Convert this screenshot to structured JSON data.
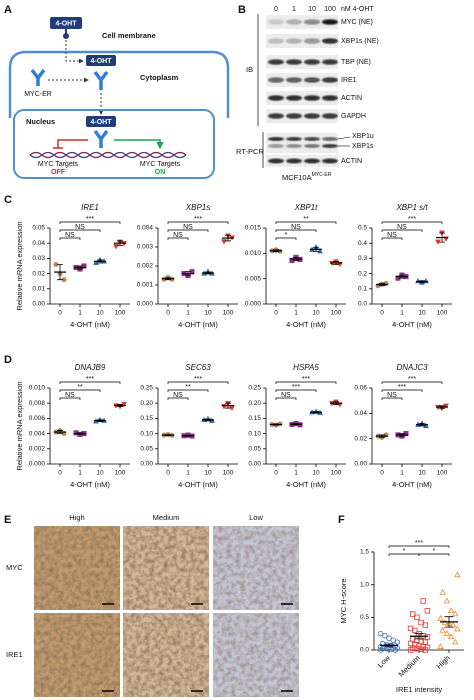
{
  "panel_labels": [
    "A",
    "B",
    "C",
    "D",
    "E",
    "F"
  ],
  "diagram": {
    "ligand": "4-OHT",
    "membrane": "Cell membrane",
    "cytoplasm": "Cytoplasm",
    "receptor": "MYC-ER",
    "nucleus": "Nucleus",
    "targets_off": "MYC Targets",
    "off": "OFF",
    "targets_on": "MYC Targets",
    "on": "ON"
  },
  "blot": {
    "concentrations": [
      0,
      1,
      10,
      100
    ],
    "unit": "nM 4-OHT",
    "ib_label": "IB",
    "ib_rows": [
      "MYC (NE)",
      "XBP1s (NE)",
      "TBP (NE)",
      "IRE1",
      "ACTIN",
      "GAPDH"
    ],
    "rtpcr_label": "RT-PCR",
    "rtpcr_rows": [
      "XBP1u",
      "XBP1s",
      "ACTIN"
    ],
    "cell_line": "MCF10A",
    "cell_line_sup": "MYC-ER"
  },
  "ihc": {
    "columns": [
      "High",
      "Medium",
      "Low"
    ],
    "rows": [
      "MYC",
      "IRE1"
    ]
  },
  "chart_data": [
    {
      "type": "dotplot",
      "title": "IRE1",
      "ylabel": "Relative mRNA expression",
      "xlabel": "4-OHT (nM)",
      "categories": [
        "0",
        "1",
        "10",
        "100"
      ],
      "ylim": [
        0,
        0.05
      ],
      "yticks": [
        {
          "value": 0,
          "label": "0.00"
        },
        0.01,
        0.02,
        0.03,
        0.04,
        0.05
      ],
      "groups": [
        {
          "color": "#b58a5c",
          "marker": "circle",
          "filled": true,
          "values": [
            0.026,
            0.02,
            0.016
          ],
          "mean": 0.021,
          "sd": 0.005
        },
        {
          "color": "#8e2f8e",
          "marker": "square",
          "filled": true,
          "values": [
            0.024,
            0.023,
            0.025
          ],
          "mean": 0.024,
          "sd": 0.001
        },
        {
          "color": "#2f6db5",
          "marker": "triangle",
          "filled": true,
          "values": [
            0.027,
            0.029,
            0.028
          ],
          "mean": 0.028,
          "sd": 0.001
        },
        {
          "color": "#e0392f",
          "marker": "triangle-down",
          "filled": true,
          "values": [
            0.038,
            0.041,
            0.04
          ],
          "mean": 0.04,
          "sd": 0.0015
        }
      ],
      "significance": [
        {
          "pair": [
            0,
            1
          ],
          "label": "NS"
        },
        {
          "pair": [
            0,
            2
          ],
          "label": "NS"
        },
        {
          "pair": [
            0,
            3
          ],
          "label": "***"
        }
      ]
    },
    {
      "type": "dotplot",
      "title": "XBP1s",
      "xlabel": "4-OHT (nM)",
      "categories": [
        "0",
        "1",
        "10",
        "100"
      ],
      "ylim": [
        0,
        0.004
      ],
      "yticks": [
        {
          "value": 0,
          "label": "0.000"
        },
        0.001,
        0.002,
        0.003,
        0.004
      ],
      "groups": [
        {
          "color": "#b58a5c",
          "marker": "circle",
          "filled": true,
          "values": [
            0.0013,
            0.0014,
            0.0013
          ],
          "mean": 0.00133,
          "sd": 5e-05
        },
        {
          "color": "#8e2f8e",
          "marker": "square",
          "filled": true,
          "values": [
            0.0016,
            0.0015,
            0.0017
          ],
          "mean": 0.0016,
          "sd": 0.0001
        },
        {
          "color": "#2f6db5",
          "marker": "triangle",
          "filled": true,
          "values": [
            0.0016,
            0.0017,
            0.0016
          ],
          "mean": 0.00163,
          "sd": 5e-05
        },
        {
          "color": "#e0392f",
          "marker": "triangle-down",
          "filled": true,
          "values": [
            0.0033,
            0.0036,
            0.0035
          ],
          "mean": 0.00347,
          "sd": 0.00015
        }
      ],
      "significance": [
        {
          "pair": [
            0,
            1
          ],
          "label": "NS"
        },
        {
          "pair": [
            0,
            2
          ],
          "label": "NS"
        },
        {
          "pair": [
            0,
            3
          ],
          "label": "***"
        }
      ]
    },
    {
      "type": "dotplot",
      "title": "XBP1t",
      "xlabel": "4-OHT (nM)",
      "categories": [
        "0",
        "1",
        "10",
        "100"
      ],
      "ylim": [
        0,
        0.015
      ],
      "yticks": [
        {
          "value": 0,
          "label": "0.000"
        },
        0.005,
        {
          "value": 0.01,
          "label": "0.010"
        },
        0.015
      ],
      "groups": [
        {
          "color": "#b58a5c",
          "marker": "circle",
          "filled": true,
          "values": [
            0.0105,
            0.0107,
            0.0104
          ],
          "mean": 0.0105,
          "sd": 0.0002
        },
        {
          "color": "#8e2f8e",
          "marker": "square",
          "filled": true,
          "values": [
            0.0086,
            0.0092,
            0.0088
          ],
          "mean": 0.0089,
          "sd": 0.0003
        },
        {
          "color": "#2f6db5",
          "marker": "triangle",
          "filled": true,
          "values": [
            0.0107,
            0.0112,
            0.0104
          ],
          "mean": 0.0108,
          "sd": 0.0004
        },
        {
          "color": "#e0392f",
          "marker": "triangle-down",
          "filled": true,
          "values": [
            0.0081,
            0.0084,
            0.0079
          ],
          "mean": 0.0081,
          "sd": 0.0003
        }
      ],
      "significance": [
        {
          "pair": [
            0,
            1
          ],
          "label": "*"
        },
        {
          "pair": [
            0,
            2
          ],
          "label": "NS"
        },
        {
          "pair": [
            0,
            3
          ],
          "label": "**"
        }
      ]
    },
    {
      "type": "dotplot",
      "title": "XBP1 s/t",
      "xlabel": "4-OHT (nM)",
      "categories": [
        "0",
        "1",
        "10",
        "100"
      ],
      "ylim": [
        0,
        0.5
      ],
      "yticks": [
        {
          "value": 0,
          "label": "0.0"
        },
        0.1,
        0.2,
        0.3,
        0.4,
        0.5
      ],
      "groups": [
        {
          "color": "#b58a5c",
          "marker": "circle",
          "filled": true,
          "values": [
            0.12,
            0.13,
            0.135
          ],
          "mean": 0.128,
          "sd": 0.008
        },
        {
          "color": "#8e2f8e",
          "marker": "square",
          "filled": true,
          "values": [
            0.17,
            0.19,
            0.18
          ],
          "mean": 0.18,
          "sd": 0.01
        },
        {
          "color": "#2f6db5",
          "marker": "triangle",
          "filled": true,
          "values": [
            0.15,
            0.14,
            0.15
          ],
          "mean": 0.147,
          "sd": 0.006
        },
        {
          "color": "#e0392f",
          "marker": "triangle-down",
          "filled": true,
          "values": [
            0.41,
            0.47,
            0.43
          ],
          "mean": 0.437,
          "sd": 0.03
        }
      ],
      "significance": [
        {
          "pair": [
            0,
            1
          ],
          "label": "NS"
        },
        {
          "pair": [
            0,
            2
          ],
          "label": "NS"
        },
        {
          "pair": [
            0,
            3
          ],
          "label": "***"
        }
      ]
    },
    {
      "type": "dotplot",
      "title": "DNAJB9",
      "ylabel": "Relative mRNA expression",
      "xlabel": "4-OHT (nM)",
      "categories": [
        "0",
        "1",
        "10",
        "100"
      ],
      "ylim": [
        0,
        0.01
      ],
      "yticks": [
        {
          "value": 0,
          "label": "0.000"
        },
        0.002,
        0.004,
        0.006,
        0.008,
        {
          "value": 0.01,
          "label": "0.010"
        }
      ],
      "groups": [
        {
          "color": "#b58a5c",
          "marker": "circle",
          "filled": true,
          "values": [
            0.0042,
            0.0044,
            0.004
          ],
          "mean": 0.0042,
          "sd": 0.0002
        },
        {
          "color": "#8e2f8e",
          "marker": "square",
          "filled": true,
          "values": [
            0.0041,
            0.0039,
            0.004
          ],
          "mean": 0.004,
          "sd": 0.0001
        },
        {
          "color": "#2f6db5",
          "marker": "triangle",
          "filled": true,
          "values": [
            0.0056,
            0.0058,
            0.0057
          ],
          "mean": 0.0057,
          "sd": 0.0001
        },
        {
          "color": "#e0392f",
          "marker": "triangle-down",
          "filled": true,
          "values": [
            0.0077,
            0.0076,
            0.0079
          ],
          "mean": 0.0077,
          "sd": 0.00015
        }
      ],
      "significance": [
        {
          "pair": [
            0,
            1
          ],
          "label": "NS"
        },
        {
          "pair": [
            0,
            2
          ],
          "label": "**"
        },
        {
          "pair": [
            0,
            3
          ],
          "label": "***"
        }
      ]
    },
    {
      "type": "dotplot",
      "title": "SEC63",
      "xlabel": "4-OHT (nM)",
      "categories": [
        "0",
        "1",
        "10",
        "100"
      ],
      "ylim": [
        0,
        0.25
      ],
      "yticks": [
        {
          "value": 0,
          "label": "0.00"
        },
        0.05,
        {
          "value": 0.1,
          "label": "0.10"
        },
        0.15,
        {
          "value": 0.2,
          "label": "0.20"
        },
        0.25
      ],
      "groups": [
        {
          "color": "#b58a5c",
          "marker": "circle",
          "filled": true,
          "values": [
            0.095,
            0.097,
            0.094
          ],
          "mean": 0.095,
          "sd": 0.0015
        },
        {
          "color": "#8e2f8e",
          "marker": "square",
          "filled": true,
          "values": [
            0.093,
            0.095,
            0.092
          ],
          "mean": 0.093,
          "sd": 0.0015
        },
        {
          "color": "#2f6db5",
          "marker": "triangle",
          "filled": true,
          "values": [
            0.145,
            0.148,
            0.142
          ],
          "mean": 0.145,
          "sd": 0.003
        },
        {
          "color": "#e0392f",
          "marker": "triangle-down",
          "filled": true,
          "values": [
            0.19,
            0.2,
            0.185
          ],
          "mean": 0.192,
          "sd": 0.008
        }
      ],
      "significance": [
        {
          "pair": [
            0,
            1
          ],
          "label": "NS"
        },
        {
          "pair": [
            0,
            2
          ],
          "label": "**"
        },
        {
          "pair": [
            0,
            3
          ],
          "label": "***"
        }
      ]
    },
    {
      "type": "dotplot",
      "title": "HSPA5",
      "xlabel": "4-OHT (nM)",
      "categories": [
        "0",
        "1",
        "10",
        "100"
      ],
      "ylim": [
        0,
        0.25
      ],
      "yticks": [
        {
          "value": 0,
          "label": "0.00"
        },
        0.05,
        {
          "value": 0.1,
          "label": "0.10"
        },
        0.15,
        {
          "value": 0.2,
          "label": "0.20"
        },
        0.25
      ],
      "groups": [
        {
          "color": "#b58a5c",
          "marker": "circle",
          "filled": true,
          "values": [
            0.13,
            0.128,
            0.132
          ],
          "mean": 0.13,
          "sd": 0.002
        },
        {
          "color": "#8e2f8e",
          "marker": "square",
          "filled": true,
          "values": [
            0.13,
            0.133,
            0.129
          ],
          "mean": 0.131,
          "sd": 0.002
        },
        {
          "color": "#2f6db5",
          "marker": "triangle",
          "filled": true,
          "values": [
            0.17,
            0.172,
            0.168
          ],
          "mean": 0.17,
          "sd": 0.002
        },
        {
          "color": "#e0392f",
          "marker": "triangle-down",
          "filled": true,
          "values": [
            0.2,
            0.205,
            0.196
          ],
          "mean": 0.2,
          "sd": 0.0045
        }
      ],
      "significance": [
        {
          "pair": [
            0,
            1
          ],
          "label": "NS"
        },
        {
          "pair": [
            0,
            2
          ],
          "label": "***"
        },
        {
          "pair": [
            0,
            3
          ],
          "label": "***"
        }
      ]
    },
    {
      "type": "dotplot",
      "title": "DNAJC3",
      "xlabel": "4-OHT (nM)",
      "categories": [
        "0",
        "1",
        "10",
        "100"
      ],
      "ylim": [
        0,
        0.06
      ],
      "yticks": [
        {
          "value": 0,
          "label": "0.00"
        },
        0.02,
        0.04,
        0.06
      ],
      "groups": [
        {
          "color": "#b58a5c",
          "marker": "circle",
          "filled": true,
          "values": [
            0.022,
            0.021,
            0.023
          ],
          "mean": 0.022,
          "sd": 0.001
        },
        {
          "color": "#8e2f8e",
          "marker": "square",
          "filled": true,
          "values": [
            0.023,
            0.022,
            0.024
          ],
          "mean": 0.023,
          "sd": 0.001
        },
        {
          "color": "#2f6db5",
          "marker": "triangle",
          "filled": true,
          "values": [
            0.031,
            0.032,
            0.03
          ],
          "mean": 0.031,
          "sd": 0.001
        },
        {
          "color": "#e0392f",
          "marker": "triangle-down",
          "filled": true,
          "values": [
            0.045,
            0.044,
            0.046
          ],
          "mean": 0.045,
          "sd": 0.001
        }
      ],
      "significance": [
        {
          "pair": [
            0,
            1
          ],
          "label": "NS"
        },
        {
          "pair": [
            0,
            2
          ],
          "label": "***"
        },
        {
          "pair": [
            0,
            3
          ],
          "label": "***"
        }
      ]
    },
    {
      "type": "dotplot",
      "ylabel": "MYC H-score",
      "xlabel": "IRE1 intensity",
      "categories": [
        "Low",
        "Medium",
        "High"
      ],
      "xtick_rotation": -45,
      "ylim": [
        0,
        1.5
      ],
      "yticks": [
        {
          "value": 0,
          "label": "0.0"
        },
        0.5,
        {
          "value": 1,
          "label": "1.0"
        },
        1.5
      ],
      "groups": [
        {
          "color": "#2f6db5",
          "marker": "circle",
          "filled": false,
          "values": [
            0.0,
            0.0,
            0.01,
            0.02,
            0.02,
            0.03,
            0.03,
            0.04,
            0.05,
            0.05,
            0.06,
            0.07,
            0.08,
            0.1,
            0.12,
            0.15,
            0.18,
            0.22,
            0.25,
            0.0
          ],
          "mean": 0.07,
          "sd": 0.02
        },
        {
          "color": "#e0392f",
          "marker": "square",
          "filled": false,
          "values": [
            0.0,
            0.0,
            0.01,
            0.02,
            0.03,
            0.04,
            0.05,
            0.06,
            0.08,
            0.1,
            0.12,
            0.13,
            0.15,
            0.17,
            0.2,
            0.22,
            0.25,
            0.3,
            0.33,
            0.38,
            0.42,
            0.5,
            0.55,
            0.6,
            0.75
          ],
          "mean": 0.21,
          "sd": 0.04
        },
        {
          "color": "#f08a2c",
          "marker": "triangle",
          "filled": false,
          "values": [
            0.05,
            0.12,
            0.2,
            0.25,
            0.3,
            0.32,
            0.38,
            0.4,
            0.42,
            0.48,
            0.55,
            0.6,
            0.75,
            0.88,
            1.15
          ],
          "mean": 0.43,
          "sd": 0.08
        }
      ],
      "significance": [
        {
          "pair": [
            0,
            1
          ],
          "label": "*"
        },
        {
          "pair": [
            1,
            2
          ],
          "label": "*"
        },
        {
          "pair": [
            0,
            2
          ],
          "label": "***"
        }
      ]
    }
  ]
}
